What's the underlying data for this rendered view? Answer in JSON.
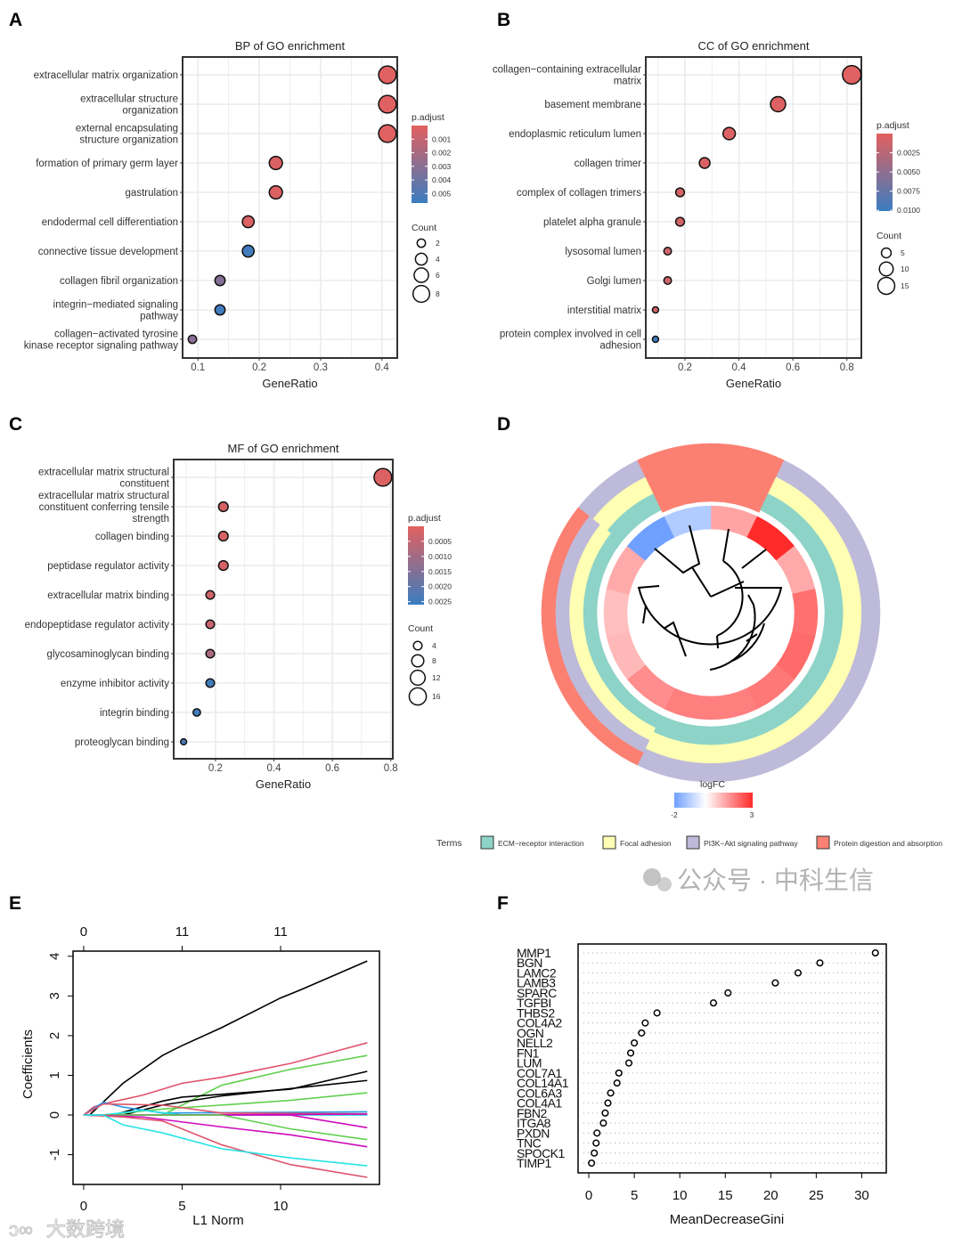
{
  "panel_labels": [
    "A",
    "B",
    "C",
    "D",
    "E",
    "F"
  ],
  "watermarks": {
    "right": "公众号 · 中科生信",
    "left": "大数跨境"
  },
  "chart_data": [
    {
      "type": "scatter",
      "title": "BP of GO enrichment",
      "xlabel": "GeneRatio",
      "xlim": [
        0.075,
        0.425
      ],
      "xticks": [
        "0.1",
        "0.2",
        "0.3",
        "0.4"
      ],
      "categories": [
        [
          "extracellular matrix organization"
        ],
        [
          "extracellular structure",
          "organization"
        ],
        [
          "external encapsulating",
          "structure organization"
        ],
        [
          "formation of primary germ layer"
        ],
        [
          "gastrulation"
        ],
        [
          "endodermal cell differentiation"
        ],
        [
          "connective tissue development"
        ],
        [
          "collagen fibril organization"
        ],
        [
          "integrin−mediated signaling",
          "pathway"
        ],
        [
          "collagen−activated tyrosine",
          "kinase receptor signaling pathway"
        ]
      ],
      "gene_ratio": [
        0.409,
        0.409,
        0.409,
        0.227,
        0.227,
        0.182,
        0.182,
        0.136,
        0.136,
        0.091
      ],
      "count": [
        9,
        9,
        9,
        5,
        5,
        4,
        4,
        3,
        3,
        2
      ],
      "p_adjust": [
        0.0001,
        0.0001,
        0.0001,
        0.0002,
        0.0002,
        0.0003,
        0.0055,
        0.0032,
        0.0055,
        0.003
      ],
      "color_legend": {
        "title": "p.adjust",
        "range": [
          0,
          0.0057
        ],
        "ticks": [
          "0.001",
          "0.002",
          "0.003",
          "0.004",
          "0.005"
        ],
        "low_color": "#E2605F",
        "high_color": "#3B7DC0"
      },
      "size_legend": {
        "title": "Count",
        "values": [
          "2",
          "4",
          "6",
          "8"
        ]
      }
    },
    {
      "type": "scatter",
      "title": "CC of GO enrichment",
      "xlabel": "GeneRatio",
      "xlim": [
        0.055,
        0.8535
      ],
      "xticks": [
        "0.2",
        "0.4",
        "0.6",
        "0.8"
      ],
      "categories": [
        [
          "collagen−containing extracellular",
          "matrix"
        ],
        [
          "basement membrane"
        ],
        [
          "endoplasmic reticulum lumen"
        ],
        [
          "collagen trimer"
        ],
        [
          "complex of collagen trimers"
        ],
        [
          "platelet alpha granule"
        ],
        [
          "lysosomal lumen"
        ],
        [
          "Golgi lumen"
        ],
        [
          "interstitial matrix"
        ],
        [
          "protein complex involved in cell",
          "adhesion"
        ]
      ],
      "gene_ratio": [
        0.818,
        0.545,
        0.364,
        0.273,
        0.182,
        0.182,
        0.136,
        0.136,
        0.091,
        0.091
      ],
      "count": [
        18,
        12,
        8,
        6,
        4,
        4,
        3,
        3,
        2,
        2
      ],
      "p_adjust": [
        0.0002,
        0.0003,
        0.0004,
        0.0005,
        0.0008,
        0.0009,
        0.0012,
        0.0013,
        0.001,
        0.0098
      ],
      "color_legend": {
        "title": "p.adjust",
        "range": [
          0,
          0.0101
        ],
        "ticks": [
          "0.0025",
          "0.0050",
          "0.0075",
          "0.0100"
        ],
        "low_color": "#E2605F",
        "high_color": "#3B7DC0"
      },
      "size_legend": {
        "title": "Count",
        "values": [
          "5",
          "10",
          "15"
        ]
      }
    },
    {
      "type": "scatter",
      "title": "MF of GO enrichment",
      "xlabel": "GeneRatio",
      "xlim": [
        0.057,
        0.807
      ],
      "xticks": [
        "0.2",
        "0.4",
        "0.6",
        "0.8"
      ],
      "categories": [
        [
          "extracellular matrix structural",
          "constituent"
        ],
        [
          "extracellular matrix structural",
          "constituent conferring tensile",
          "strength"
        ],
        [
          "collagen binding"
        ],
        [
          "peptidase regulator activity"
        ],
        [
          "extracellular matrix binding"
        ],
        [
          "endopeptidase regulator activity"
        ],
        [
          "glycosaminoglycan binding"
        ],
        [
          "enzyme inhibitor activity"
        ],
        [
          "integrin binding"
        ],
        [
          "proteoglycan binding"
        ]
      ],
      "gene_ratio": [
        0.773,
        0.227,
        0.227,
        0.227,
        0.182,
        0.182,
        0.182,
        0.182,
        0.136,
        0.091
      ],
      "count": [
        17,
        5,
        5,
        5,
        4,
        4,
        4,
        4,
        3,
        2
      ],
      "p_adjust": [
        0.0001,
        0.0002,
        0.0002,
        0.0002,
        0.0003,
        0.0004,
        0.0009,
        0.0025,
        0.0025,
        0.0024
      ],
      "color_legend": {
        "title": "p.adjust",
        "range": [
          0,
          0.0026
        ],
        "ticks": [
          "0.0005",
          "0.0010",
          "0.0015",
          "0.0020",
          "0.0025"
        ],
        "low_color": "#E2605F",
        "high_color": "#3B7DC0"
      },
      "size_legend": {
        "title": "Count",
        "values": [
          "4",
          "8",
          "12",
          "16"
        ]
      }
    },
    {
      "type": "chord",
      "logfc_legend": {
        "title": "logFC",
        "min_label": "-2",
        "max_label": "3",
        "range": [
          -2,
          3
        ],
        "low_color": "#6FA0FF",
        "mid_color": "#FFFFFF",
        "high_color": "#FF2A2A"
      },
      "terms_title": "Terms",
      "terms": [
        {
          "name": "ECM−receptor interaction",
          "color": "#8DD3C7"
        },
        {
          "name": "Focal adhesion",
          "color": "#FFFFB3"
        },
        {
          "name": "PI3K−Akt signaling pathway",
          "color": "#BEBADA"
        },
        {
          "name": "Protein digestion and absorption",
          "color": "#FB8072"
        }
      ],
      "genes": [
        {
          "logFC": 1.3,
          "terms": [
            3
          ]
        },
        {
          "logFC": 3.0,
          "terms": [
            0,
            1,
            2
          ]
        },
        {
          "logFC": 1.2,
          "terms": [
            0,
            1,
            2
          ]
        },
        {
          "logFC": 2.0,
          "terms": [
            0,
            1,
            2
          ]
        },
        {
          "logFC": 2.1,
          "terms": [
            0,
            1,
            2
          ]
        },
        {
          "logFC": 1.9,
          "terms": [
            0,
            1,
            2
          ]
        },
        {
          "logFC": 1.8,
          "terms": [
            0,
            1,
            2
          ]
        },
        {
          "logFC": 1.8,
          "terms": [
            0,
            1,
            2
          ]
        },
        {
          "logFC": 1.6,
          "terms": [
            0,
            1,
            2,
            3
          ]
        },
        {
          "logFC": 1.0,
          "terms": [
            0,
            1,
            2,
            3
          ]
        },
        {
          "logFC": 0.9,
          "terms": [
            0,
            1,
            2,
            3
          ]
        },
        {
          "logFC": 1.2,
          "terms": [
            0,
            1,
            2,
            3
          ]
        },
        {
          "logFC": -2.0,
          "terms": [
            0,
            1,
            2
          ]
        },
        {
          "logFC": -1.1,
          "terms": [
            3
          ]
        }
      ]
    },
    {
      "type": "line",
      "xlabel": "L1 Norm",
      "ylabel": "Coefficients",
      "xlim": [
        -0.54,
        15.02
      ],
      "ylim": [
        -1.75,
        4.13
      ],
      "xticks": [
        "0",
        "5",
        "10"
      ],
      "yticks": [
        "-1",
        "0",
        "1",
        "2",
        "3",
        "4"
      ],
      "top_ticks": [
        {
          "x": 0,
          "label": "0"
        },
        {
          "x": 5,
          "label": "11"
        },
        {
          "x": 10,
          "label": "11"
        }
      ],
      "series": [
        {
          "color": "#000000",
          "x": [
            0,
            0.3,
            2,
            4,
            5,
            7,
            10,
            11,
            14.4
          ],
          "y": [
            0,
            0,
            0.8,
            1.5,
            1.75,
            2.2,
            2.95,
            3.15,
            3.88
          ]
        },
        {
          "color": "#DF536B",
          "x": [
            0,
            0.5,
            1,
            3,
            5,
            7,
            10.5,
            14.4
          ],
          "y": [
            0,
            0.2,
            0.28,
            0.5,
            0.8,
            0.95,
            1.3,
            1.82
          ]
        },
        {
          "color": "#61D04F",
          "x": [
            0,
            4,
            7,
            10.5,
            14.4
          ],
          "y": [
            0,
            0,
            0.75,
            1.15,
            1.5
          ]
        },
        {
          "color": "#000000",
          "x": [
            0,
            1.5,
            4,
            5,
            10.5,
            14.4
          ],
          "y": [
            0,
            0,
            0.35,
            0.45,
            0.65,
            1.1
          ]
        },
        {
          "color": "#000000",
          "x": [
            0,
            2,
            4,
            7,
            14.4
          ],
          "y": [
            0,
            0,
            0.25,
            0.48,
            0.87
          ]
        },
        {
          "color": "#61D04F",
          "x": [
            0,
            1,
            4,
            7,
            10.5,
            14.4
          ],
          "y": [
            0,
            0,
            0.15,
            0.25,
            0.37,
            0.56
          ]
        },
        {
          "color": "#2297E6",
          "x": [
            0,
            1,
            2,
            4,
            14.4
          ],
          "y": [
            0,
            0.32,
            0.2,
            0.05,
            0.08
          ]
        },
        {
          "color": "#28E2E5",
          "x": [
            0,
            1,
            3,
            5,
            14.4
          ],
          "y": [
            0,
            0,
            0.12,
            0,
            0
          ]
        },
        {
          "color": "#DF536B",
          "x": [
            0,
            1,
            4,
            7,
            14.4
          ],
          "y": [
            0,
            0.28,
            0.25,
            0.05,
            0.03
          ]
        },
        {
          "color": "#CD0BBC",
          "x": [
            0,
            2,
            14.4
          ],
          "y": [
            0,
            0,
            0.02
          ]
        },
        {
          "color": "#CD0BBC",
          "x": [
            0,
            3,
            10.5,
            14.4
          ],
          "y": [
            0,
            0,
            0,
            -0.32
          ]
        },
        {
          "color": "#61D04F",
          "x": [
            0,
            7,
            10.5,
            14.4
          ],
          "y": [
            0,
            0,
            -0.35,
            -0.62
          ]
        },
        {
          "color": "#CD0BBC",
          "x": [
            0,
            3,
            7,
            10.5,
            14.4
          ],
          "y": [
            0,
            -0.05,
            -0.3,
            -0.5,
            -0.8
          ]
        },
        {
          "color": "#DF536B",
          "x": [
            0,
            2,
            4,
            7,
            10.5,
            14.4
          ],
          "y": [
            0,
            -0.05,
            -0.15,
            -0.75,
            -1.25,
            -1.57
          ]
        },
        {
          "color": "#28E2E5",
          "x": [
            0,
            1,
            2,
            4,
            7,
            10.5,
            14.4
          ],
          "y": [
            0,
            0,
            -0.25,
            -0.45,
            -0.85,
            -1.08,
            -1.28
          ]
        }
      ]
    },
    {
      "type": "scatter",
      "xlabel": "MeanDecreaseGini",
      "xlim": [
        -1.18,
        32.7
      ],
      "xticks": [
        "0",
        "5",
        "10",
        "15",
        "20",
        "25",
        "30"
      ],
      "categories": [
        "MMP1",
        "BGN",
        "LAMC2",
        "LAMB3",
        "SPARC",
        "TGFBI",
        "THBS2",
        "COL4A2",
        "OGN",
        "NELL2",
        "FN1",
        "LUM",
        "COL7A1",
        "COL14A1",
        "COL6A3",
        "COL4A1",
        "FBN2",
        "ITGA8",
        "PXDN",
        "TNC",
        "SPOCK1",
        "TIMP1"
      ],
      "values": [
        31.5,
        25.4,
        23.0,
        20.5,
        15.3,
        13.7,
        7.5,
        6.2,
        5.8,
        5.0,
        4.6,
        4.4,
        3.3,
        3.1,
        2.4,
        2.1,
        1.8,
        1.6,
        0.9,
        0.8,
        0.6,
        0.3
      ]
    }
  ]
}
